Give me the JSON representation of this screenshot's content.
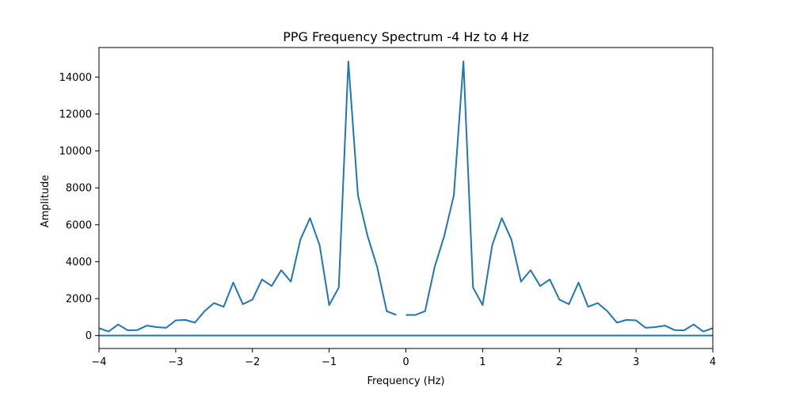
{
  "chart_data": {
    "type": "line",
    "title": "PPG Frequency Spectrum -4 Hz to 4 Hz",
    "xlabel": "Frequency (Hz)",
    "ylabel": "Amplitude",
    "xlim": [
      -4,
      4
    ],
    "ylim": [
      -700,
      15600
    ],
    "xticks": [
      -4,
      -3,
      -2,
      -1,
      0,
      1,
      2,
      3,
      4
    ],
    "xtick_labels": [
      "−4",
      "−3",
      "−2",
      "−1",
      "0",
      "1",
      "2",
      "3",
      "4"
    ],
    "yticks": [
      0,
      2000,
      4000,
      6000,
      8000,
      10000,
      12000,
      14000
    ],
    "ytick_labels": [
      "0",
      "2000",
      "4000",
      "6000",
      "8000",
      "10000",
      "12000",
      "14000"
    ],
    "grid": false,
    "line_color": "#1f77b4",
    "series": [
      {
        "x": [
          -4.0,
          -3.875,
          -3.75,
          -3.625,
          -3.5,
          -3.375,
          -3.25,
          -3.125,
          -3.0,
          -2.875,
          -2.75,
          -2.625,
          -2.5,
          -2.375,
          -2.25,
          -2.125,
          -2.0,
          -1.875,
          -1.75,
          -1.625,
          -1.5,
          -1.375,
          -1.25,
          -1.125,
          -1.0,
          -0.875,
          -0.75,
          -0.625,
          -0.5,
          -0.375,
          -0.25,
          -0.125
        ],
        "values": [
          400,
          220,
          600,
          280,
          300,
          540,
          460,
          420,
          820,
          850,
          700,
          1320,
          1760,
          1560,
          2870,
          1700,
          1950,
          3040,
          2680,
          3540,
          2920,
          5200,
          6360,
          4900,
          1650,
          2600,
          14850,
          7600,
          5400,
          3720,
          1320,
          1120
        ]
      },
      {
        "x": [
          0.0,
          0.125,
          0.25,
          0.375,
          0.5,
          0.625,
          0.75,
          0.875,
          1.0,
          1.125,
          1.25,
          1.375,
          1.5,
          1.625,
          1.75,
          1.875,
          2.0,
          2.125,
          2.25,
          2.375,
          2.5,
          2.625,
          2.75,
          2.875,
          3.0,
          3.125,
          3.25,
          3.375,
          3.5,
          3.625,
          3.75,
          3.875,
          4.0
        ],
        "values": [
          1120,
          1120,
          1320,
          3720,
          5400,
          7600,
          14850,
          2600,
          1650,
          4900,
          6360,
          5200,
          2920,
          3540,
          2680,
          3040,
          1950,
          1700,
          2870,
          1560,
          1760,
          1320,
          700,
          850,
          820,
          420,
          460,
          540,
          300,
          280,
          600,
          220,
          400
        ]
      },
      {
        "x": [
          -4.0,
          4.0
        ],
        "values": [
          0,
          0
        ]
      }
    ]
  }
}
